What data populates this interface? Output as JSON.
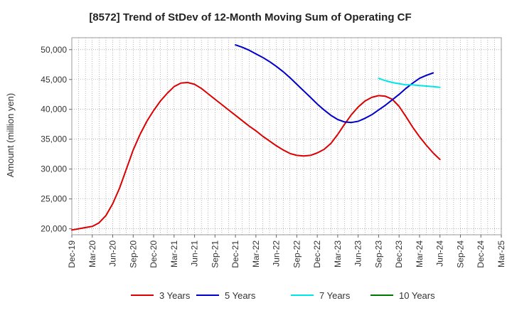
{
  "chart_data": {
    "type": "line",
    "title": "[8572]  Trend of StDev of 12-Month Moving Sum of Operating CF",
    "xlabel": "",
    "ylabel": "Amount (million yen)",
    "ylim": [
      19000,
      52000
    ],
    "yticks": [
      20000,
      25000,
      30000,
      35000,
      40000,
      45000,
      50000
    ],
    "ytick_labels": [
      "20,000",
      "25,000",
      "30,000",
      "35,000",
      "40,000",
      "45,000",
      "50,000"
    ],
    "x_categories": [
      "Dec-19",
      "Mar-20",
      "Jun-20",
      "Sep-20",
      "Dec-20",
      "Mar-21",
      "Jun-21",
      "Sep-21",
      "Dec-21",
      "Mar-22",
      "Jun-22",
      "Sep-22",
      "Dec-22",
      "Mar-23",
      "Jun-23",
      "Sep-23",
      "Dec-23",
      "Mar-24",
      "Jun-24",
      "Sep-24",
      "Dec-24",
      "Mar-25"
    ],
    "grid": true,
    "legend_position": "bottom",
    "series": [
      {
        "name": "3 Years",
        "color": "#dd0000",
        "points": [
          [
            "Dec-19",
            19800
          ],
          [
            "Jan-20",
            20000
          ],
          [
            "Feb-20",
            20200
          ],
          [
            "Mar-20",
            20400
          ],
          [
            "Apr-20",
            21000
          ],
          [
            "May-20",
            22200
          ],
          [
            "Jun-20",
            24200
          ],
          [
            "Jul-20",
            26800
          ],
          [
            "Aug-20",
            30000
          ],
          [
            "Sep-20",
            33200
          ],
          [
            "Oct-20",
            35800
          ],
          [
            "Nov-20",
            38000
          ],
          [
            "Dec-20",
            39800
          ],
          [
            "Jan-21",
            41400
          ],
          [
            "Feb-21",
            42700
          ],
          [
            "Mar-21",
            43800
          ],
          [
            "Apr-21",
            44400
          ],
          [
            "May-21",
            44500
          ],
          [
            "Jun-21",
            44200
          ],
          [
            "Jul-21",
            43500
          ],
          [
            "Aug-21",
            42600
          ],
          [
            "Sep-21",
            41700
          ],
          [
            "Oct-21",
            40800
          ],
          [
            "Nov-21",
            39900
          ],
          [
            "Dec-21",
            39000
          ],
          [
            "Jan-22",
            38100
          ],
          [
            "Feb-22",
            37200
          ],
          [
            "Mar-22",
            36400
          ],
          [
            "Apr-22",
            35500
          ],
          [
            "May-22",
            34700
          ],
          [
            "Jun-22",
            33900
          ],
          [
            "Jul-22",
            33200
          ],
          [
            "Aug-22",
            32600
          ],
          [
            "Sep-22",
            32300
          ],
          [
            "Oct-22",
            32200
          ],
          [
            "Nov-22",
            32300
          ],
          [
            "Dec-22",
            32700
          ],
          [
            "Jan-23",
            33300
          ],
          [
            "Feb-23",
            34300
          ],
          [
            "Mar-23",
            35800
          ],
          [
            "Apr-23",
            37500
          ],
          [
            "May-23",
            39100
          ],
          [
            "Jun-23",
            40400
          ],
          [
            "Jul-23",
            41400
          ],
          [
            "Aug-23",
            42000
          ],
          [
            "Sep-23",
            42300
          ],
          [
            "Oct-23",
            42200
          ],
          [
            "Nov-23",
            41700
          ],
          [
            "Dec-23",
            40500
          ],
          [
            "Jan-24",
            38800
          ],
          [
            "Feb-24",
            37000
          ],
          [
            "Mar-24",
            35400
          ],
          [
            "Apr-24",
            34000
          ],
          [
            "May-24",
            32700
          ],
          [
            "Jun-24",
            31600
          ]
        ]
      },
      {
        "name": "5 Years",
        "color": "#0000cc",
        "points": [
          [
            "Dec-21",
            50800
          ],
          [
            "Jan-22",
            50400
          ],
          [
            "Feb-22",
            49900
          ],
          [
            "Mar-22",
            49300
          ],
          [
            "Apr-22",
            48700
          ],
          [
            "May-22",
            48000
          ],
          [
            "Jun-22",
            47200
          ],
          [
            "Jul-22",
            46300
          ],
          [
            "Aug-22",
            45300
          ],
          [
            "Sep-22",
            44200
          ],
          [
            "Oct-22",
            43100
          ],
          [
            "Nov-22",
            42000
          ],
          [
            "Dec-22",
            40900
          ],
          [
            "Jan-23",
            39900
          ],
          [
            "Feb-23",
            39000
          ],
          [
            "Mar-23",
            38300
          ],
          [
            "Apr-23",
            37900
          ],
          [
            "May-23",
            37800
          ],
          [
            "Jun-23",
            38000
          ],
          [
            "Jul-23",
            38500
          ],
          [
            "Aug-23",
            39100
          ],
          [
            "Sep-23",
            39900
          ],
          [
            "Oct-23",
            40700
          ],
          [
            "Nov-23",
            41600
          ],
          [
            "Dec-23",
            42500
          ],
          [
            "Jan-24",
            43500
          ],
          [
            "Feb-24",
            44400
          ],
          [
            "Mar-24",
            45200
          ],
          [
            "Apr-24",
            45700
          ],
          [
            "May-24",
            46100
          ]
        ]
      },
      {
        "name": "7 Years",
        "color": "#00e5e5",
        "points": [
          [
            "Sep-23",
            45200
          ],
          [
            "Oct-23",
            44800
          ],
          [
            "Nov-23",
            44500
          ],
          [
            "Dec-23",
            44300
          ],
          [
            "Jan-24",
            44100
          ],
          [
            "Feb-24",
            44100
          ],
          [
            "Mar-24",
            44000
          ],
          [
            "Apr-24",
            43900
          ],
          [
            "May-24",
            43800
          ],
          [
            "Jun-24",
            43700
          ]
        ]
      },
      {
        "name": "10 Years",
        "color": "#007700",
        "points": []
      }
    ]
  }
}
